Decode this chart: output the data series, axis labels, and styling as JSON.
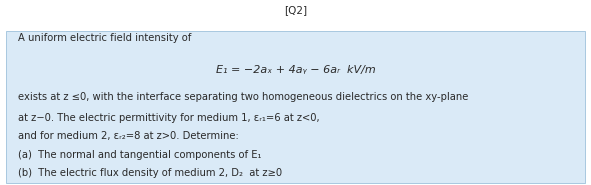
{
  "label": "[Q2]",
  "bg_color": "#ffffff",
  "box_facecolor": "#daeaf7",
  "box_edgecolor": "#a8c8e0",
  "body_color": "#2a2a2a",
  "text_fontsize": 7.2,
  "eq_fontsize": 8.0,
  "label_fontsize": 7.5,
  "line1": "A uniform electric field intensity of",
  "line2": "E₁ = −2aₓ + 4aᵧ − 6aᵣ  kV/m",
  "line3": "exists at z ≤0, with the interface separating two homogeneous dielectrics on the xy-plane",
  "line4": "at z−0. The electric permittivity for medium 1, εᵣ₁=6 at z<0,",
  "line5": "and for medium 2, εᵣ₂=8 at z>0. Determine:",
  "line6": "(a)  The normal and tangential components of E₁",
  "line7": "(b)  The electric flux density of medium 2, D₂  at z≥0"
}
